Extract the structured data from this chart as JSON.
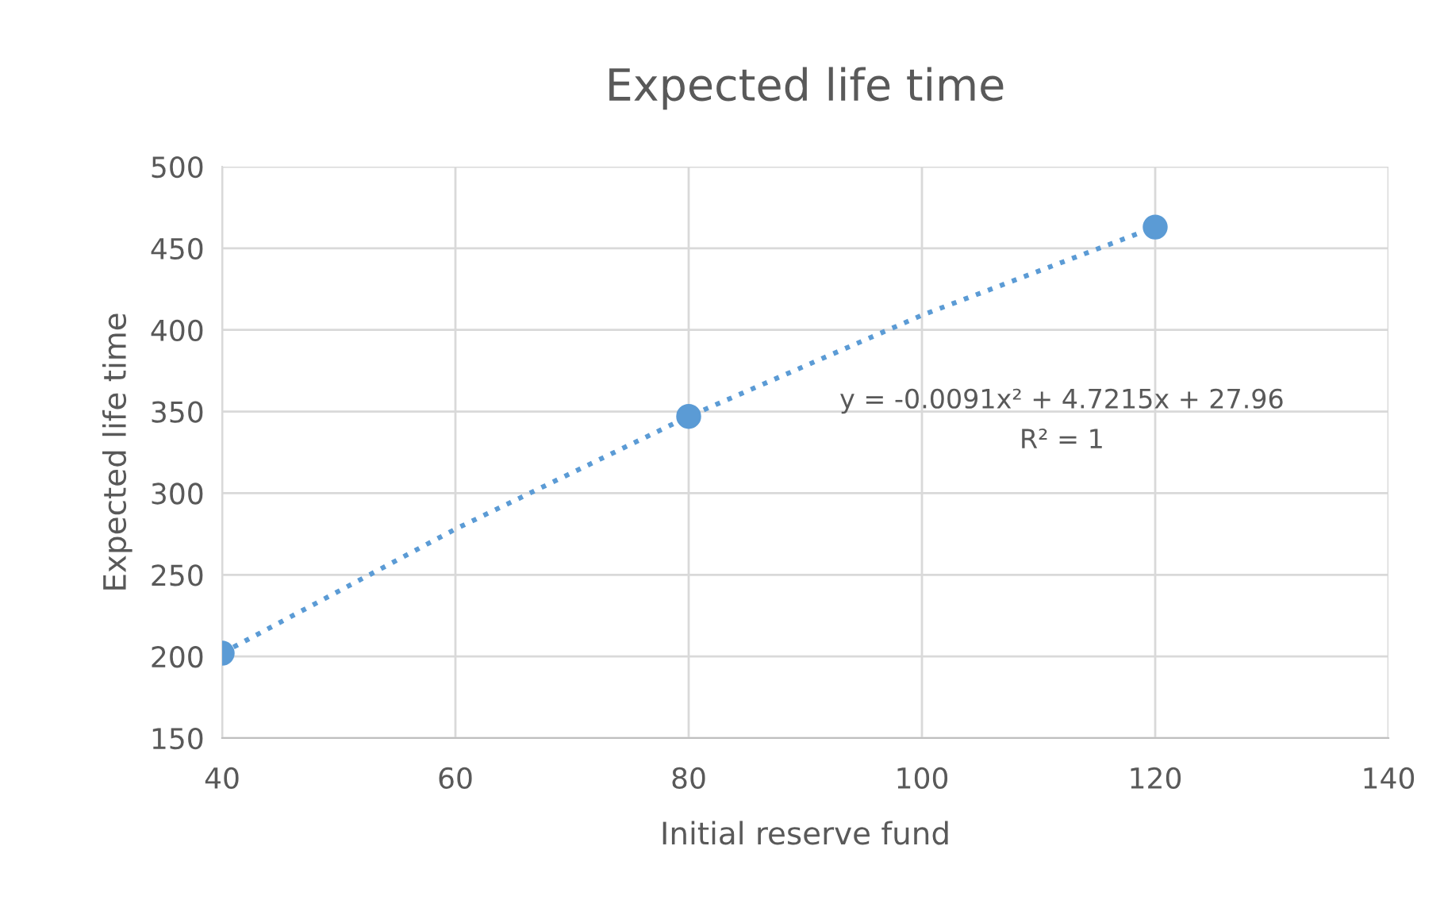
{
  "chart_data": {
    "type": "scatter",
    "title": "Expected life time",
    "xlabel": "Initial reserve fund",
    "ylabel": "Expected life time",
    "series": [
      {
        "color": "#5b9bd5",
        "marker": "circle",
        "x": [
          40,
          80,
          120
        ],
        "values": [
          202,
          347,
          463
        ]
      },
      {
        "type": "line",
        "color": "#5b9bd5",
        "marker": "none",
        "line_style": "dotted",
        "x": [
          40,
          60,
          80,
          100,
          120
        ],
        "values": [
          202,
          278,
          347,
          409,
          463
        ]
      }
    ],
    "annotations": [
      "y = -0.0091x² + 4.7215x + 27.96",
      "R² = 1"
    ],
    "xlim": [
      40,
      140
    ],
    "xticks": [
      40,
      60,
      80,
      100,
      120,
      140
    ],
    "ylim": [
      150,
      500
    ],
    "yticks": [
      150,
      200,
      250,
      300,
      350,
      400,
      450,
      500
    ],
    "grid": true,
    "legend": false
  }
}
